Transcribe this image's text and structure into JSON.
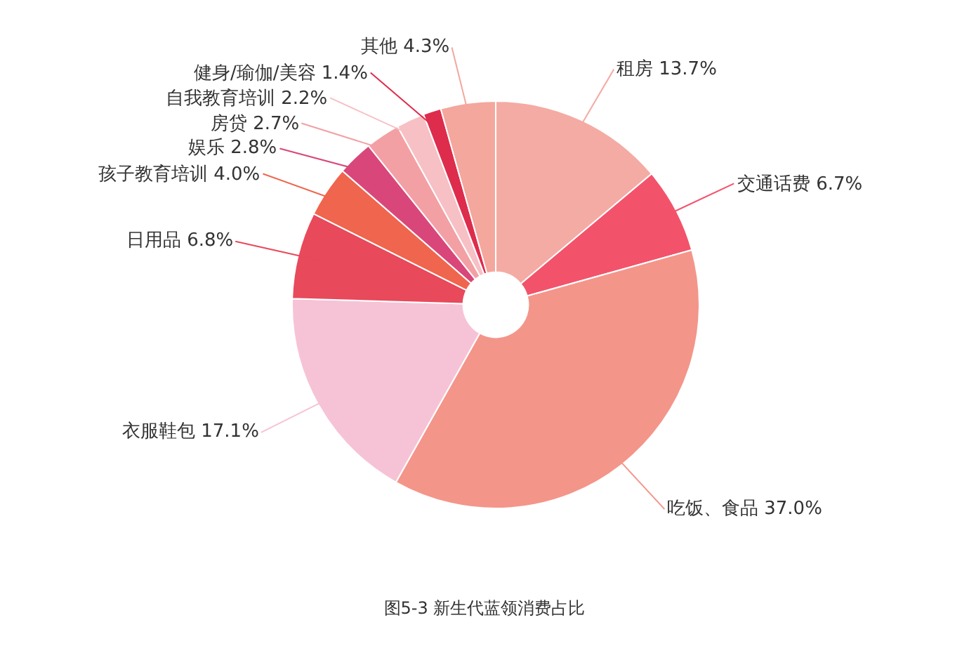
{
  "chart_data": {
    "type": "donut",
    "title": "图5-3 新生代蓝领消费占比",
    "categories": [
      "租房",
      "交通话费",
      "吃饭、食品",
      "衣服鞋包",
      "日用品",
      "孩子教育培训",
      "娱乐",
      "房贷",
      "自我教育培训",
      "健身/瑜伽/美容",
      "其他"
    ],
    "values": [
      13.7,
      6.7,
      37.0,
      17.1,
      6.8,
      4.0,
      2.8,
      2.7,
      2.2,
      1.4,
      4.3
    ],
    "value_labels": [
      "13.7%",
      "6.7%",
      "37.0%",
      "17.1%",
      "6.8%",
      "4.0%",
      "2.8%",
      "2.7%",
      "2.2%",
      "1.4%",
      "4.3%"
    ],
    "colors": [
      "#f4aba3",
      "#f2536b",
      "#f4958a",
      "#f6c3d6",
      "#e8495b",
      "#f0654d",
      "#d9477a",
      "#f3a0a4",
      "#f7c0c5",
      "#de2c4d",
      "#f3a79d"
    ]
  }
}
